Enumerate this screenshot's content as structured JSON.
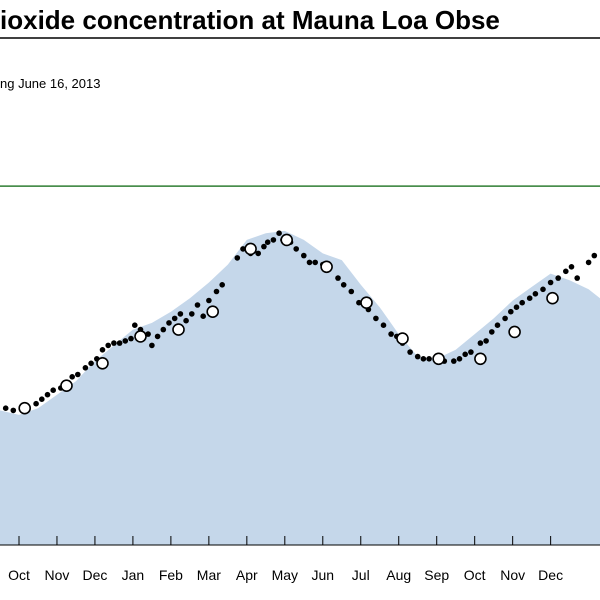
{
  "chart_data": {
    "type": "scatter",
    "title": "ioxide concentration at Mauna Loa Obse",
    "subtitle": "ng June 16, 2013",
    "xlabel": "",
    "ylabel": "",
    "x_tick_labels": [
      "Oct",
      "Nov",
      "Dec",
      "Jan",
      "Feb",
      "Mar",
      "Apr",
      "May",
      "Jun",
      "Jul",
      "Aug",
      "Sep",
      "Oct",
      "Nov",
      "Dec"
    ],
    "x_unit": "month index (0 = start of Oct 2012)",
    "xlim": [
      -0.5,
      15.3
    ],
    "ylim": [
      384,
      402.5
    ],
    "reference_line": {
      "value": 400,
      "color": "#2e7d32"
    },
    "area_fill_color": "#c5d7ea",
    "colors": {
      "daily_points": "#000000",
      "weekly_points": "#ffffff",
      "axis": "#000000"
    },
    "series": [
      {
        "name": "area",
        "x": [
          -0.5,
          0.0,
          0.5,
          1.0,
          1.5,
          2.0,
          2.5,
          3.0,
          3.5,
          4.0,
          4.5,
          5.0,
          5.5,
          6.0,
          6.5,
          7.0,
          7.5,
          8.0,
          8.5,
          9.0,
          9.5,
          10.0,
          10.5,
          11.0,
          11.5,
          12.0,
          12.5,
          13.0,
          13.5,
          14.0,
          14.5,
          15.0,
          15.3
        ],
        "values": [
          390.0,
          389.8,
          390.1,
          390.7,
          391.3,
          392.2,
          392.9,
          393.6,
          393.9,
          394.4,
          395.0,
          395.7,
          396.5,
          397.6,
          397.9,
          398.0,
          397.6,
          397.0,
          396.7,
          395.6,
          394.6,
          393.4,
          392.4,
          392.3,
          392.7,
          393.4,
          394.1,
          394.9,
          395.5,
          396.1,
          395.8,
          395.4,
          395.0
        ]
      },
      {
        "name": "daily",
        "x": [
          -0.35,
          -0.15,
          0.1,
          0.2,
          0.45,
          0.6,
          0.75,
          0.9,
          1.1,
          1.25,
          1.4,
          1.55,
          1.75,
          1.9,
          2.05,
          2.2,
          2.35,
          2.5,
          2.65,
          2.8,
          2.95,
          3.05,
          3.2,
          3.4,
          3.5,
          3.65,
          3.8,
          3.95,
          4.1,
          4.25,
          4.4,
          4.55,
          4.7,
          4.85,
          5.0,
          5.2,
          5.35,
          5.75,
          5.9,
          6.1,
          6.3,
          6.45,
          6.55,
          6.7,
          6.85,
          6.95,
          7.15,
          7.3,
          7.5,
          7.65,
          7.8,
          8.0,
          8.15,
          8.4,
          8.55,
          8.75,
          8.95,
          9.2,
          9.4,
          9.6,
          9.8,
          9.95,
          10.1,
          10.3,
          10.5,
          10.65,
          10.8,
          11.05,
          11.2,
          11.45,
          11.6,
          11.75,
          11.9,
          12.15,
          12.3,
          12.45,
          12.6,
          12.8,
          12.95,
          13.1,
          13.25,
          13.45,
          13.6,
          13.8,
          14.0,
          14.2,
          14.4,
          14.55,
          14.7,
          15.0,
          15.15
        ],
        "values": [
          390.1,
          390.0,
          390.0,
          390.2,
          390.3,
          390.5,
          390.7,
          390.9,
          391.0,
          391.2,
          391.5,
          391.6,
          391.9,
          392.1,
          392.3,
          392.7,
          392.9,
          393.0,
          393.0,
          393.1,
          393.2,
          393.8,
          393.6,
          393.4,
          392.9,
          393.3,
          393.6,
          393.9,
          394.1,
          394.3,
          394.0,
          394.3,
          394.7,
          394.2,
          394.9,
          395.3,
          395.6,
          396.8,
          397.2,
          397.0,
          397.0,
          397.3,
          397.5,
          397.6,
          397.9,
          397.6,
          397.5,
          397.2,
          396.9,
          396.6,
          396.6,
          396.5,
          396.3,
          395.9,
          395.6,
          395.3,
          394.8,
          394.5,
          394.1,
          393.8,
          393.4,
          393.3,
          393.0,
          392.6,
          392.4,
          392.3,
          392.3,
          392.2,
          392.2,
          392.2,
          392.3,
          392.5,
          392.6,
          393.0,
          393.1,
          393.5,
          393.8,
          394.1,
          394.4,
          394.6,
          394.8,
          395.0,
          395.2,
          395.4,
          395.7,
          395.9,
          396.2,
          396.4,
          395.9,
          396.6,
          396.9
        ]
      },
      {
        "name": "weekly",
        "x": [
          0.15,
          1.25,
          2.2,
          3.2,
          4.2,
          5.1,
          6.1,
          7.05,
          8.1,
          9.15,
          10.1,
          11.05,
          12.15,
          13.05,
          14.05
        ],
        "values": [
          390.1,
          391.1,
          392.1,
          393.3,
          393.6,
          394.4,
          397.2,
          397.6,
          396.4,
          394.8,
          393.2,
          392.3,
          392.3,
          393.5,
          395.0
        ]
      }
    ]
  }
}
